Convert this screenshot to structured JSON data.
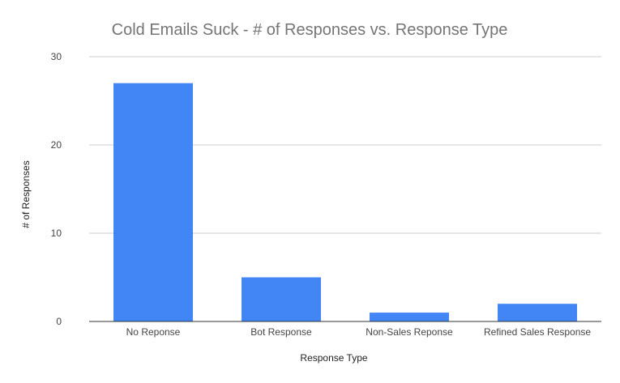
{
  "chart_data": {
    "type": "bar",
    "title": "Cold Emails Suck - # of Responses vs. Response Type",
    "xlabel": "Response Type",
    "ylabel": "# of Responses",
    "categories": [
      "No Reponse",
      "Bot Response",
      "Non-Sales Reponse",
      "Refined Sales Response"
    ],
    "values": [
      27,
      5,
      1,
      2
    ],
    "ylim": [
      0,
      30
    ],
    "yticks": [
      0,
      10,
      20,
      30
    ],
    "grid": true,
    "legend": "none",
    "bar_color": "#4285f4"
  }
}
